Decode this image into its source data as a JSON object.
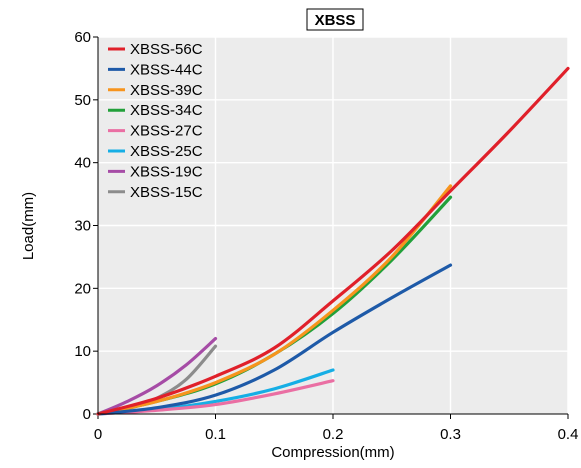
{
  "chart_data": {
    "type": "line",
    "title": "XBSS",
    "xlabel": "Compression(mm)",
    "ylabel": "Load(mm)",
    "xlim": [
      0,
      0.4
    ],
    "ylim": [
      0,
      60
    ],
    "xticks": [
      0,
      0.1,
      0.2,
      0.3,
      0.4
    ],
    "xtick_labels": [
      "0",
      "0.1",
      "0.2",
      "0.3",
      "0.4"
    ],
    "yticks": [
      0,
      10,
      20,
      30,
      40,
      50,
      60
    ],
    "ytick_labels": [
      "0",
      "10",
      "20",
      "30",
      "40",
      "50",
      "60"
    ],
    "grid": true,
    "legend_position": "top-left",
    "background": "#ececec",
    "series": [
      {
        "name": "XBSS-56C",
        "color": "#e0202a",
        "points": [
          [
            0,
            0
          ],
          [
            0.05,
            2.5
          ],
          [
            0.1,
            6
          ],
          [
            0.15,
            10.5
          ],
          [
            0.2,
            18
          ],
          [
            0.25,
            26
          ],
          [
            0.3,
            35.5
          ],
          [
            0.35,
            45
          ],
          [
            0.4,
            55
          ]
        ]
      },
      {
        "name": "XBSS-44C",
        "color": "#1e5aa8",
        "points": [
          [
            0,
            0
          ],
          [
            0.05,
            1
          ],
          [
            0.1,
            3
          ],
          [
            0.15,
            7
          ],
          [
            0.2,
            13
          ],
          [
            0.25,
            18.5
          ],
          [
            0.3,
            23.7
          ]
        ]
      },
      {
        "name": "XBSS-39C",
        "color": "#f7941d",
        "points": [
          [
            0,
            0
          ],
          [
            0.05,
            2
          ],
          [
            0.1,
            5
          ],
          [
            0.15,
            9.5
          ],
          [
            0.2,
            16.5
          ],
          [
            0.25,
            25
          ],
          [
            0.3,
            36.3
          ]
        ]
      },
      {
        "name": "XBSS-34C",
        "color": "#22a03a",
        "points": [
          [
            0,
            0
          ],
          [
            0.05,
            2
          ],
          [
            0.1,
            4.8
          ],
          [
            0.15,
            9.5
          ],
          [
            0.2,
            16
          ],
          [
            0.25,
            24.5
          ],
          [
            0.3,
            34.5
          ]
        ]
      },
      {
        "name": "XBSS-27C",
        "color": "#ea6fa3",
        "points": [
          [
            0,
            0
          ],
          [
            0.05,
            0.6
          ],
          [
            0.1,
            1.5
          ],
          [
            0.15,
            3.2
          ],
          [
            0.2,
            5.3
          ]
        ]
      },
      {
        "name": "XBSS-25C",
        "color": "#16aee5",
        "points": [
          [
            0,
            0
          ],
          [
            0.05,
            0.7
          ],
          [
            0.1,
            2
          ],
          [
            0.15,
            4
          ],
          [
            0.2,
            7
          ]
        ]
      },
      {
        "name": "XBSS-19C",
        "color": "#a64ca6",
        "points": [
          [
            0,
            0
          ],
          [
            0.025,
            2
          ],
          [
            0.05,
            4.5
          ],
          [
            0.075,
            7.8
          ],
          [
            0.1,
            12
          ]
        ]
      },
      {
        "name": "XBSS-15C",
        "color": "#8c8c8c",
        "points": [
          [
            0,
            0
          ],
          [
            0.025,
            0.8
          ],
          [
            0.05,
            2.5
          ],
          [
            0.075,
            5.5
          ],
          [
            0.1,
            10.8
          ]
        ]
      }
    ]
  }
}
